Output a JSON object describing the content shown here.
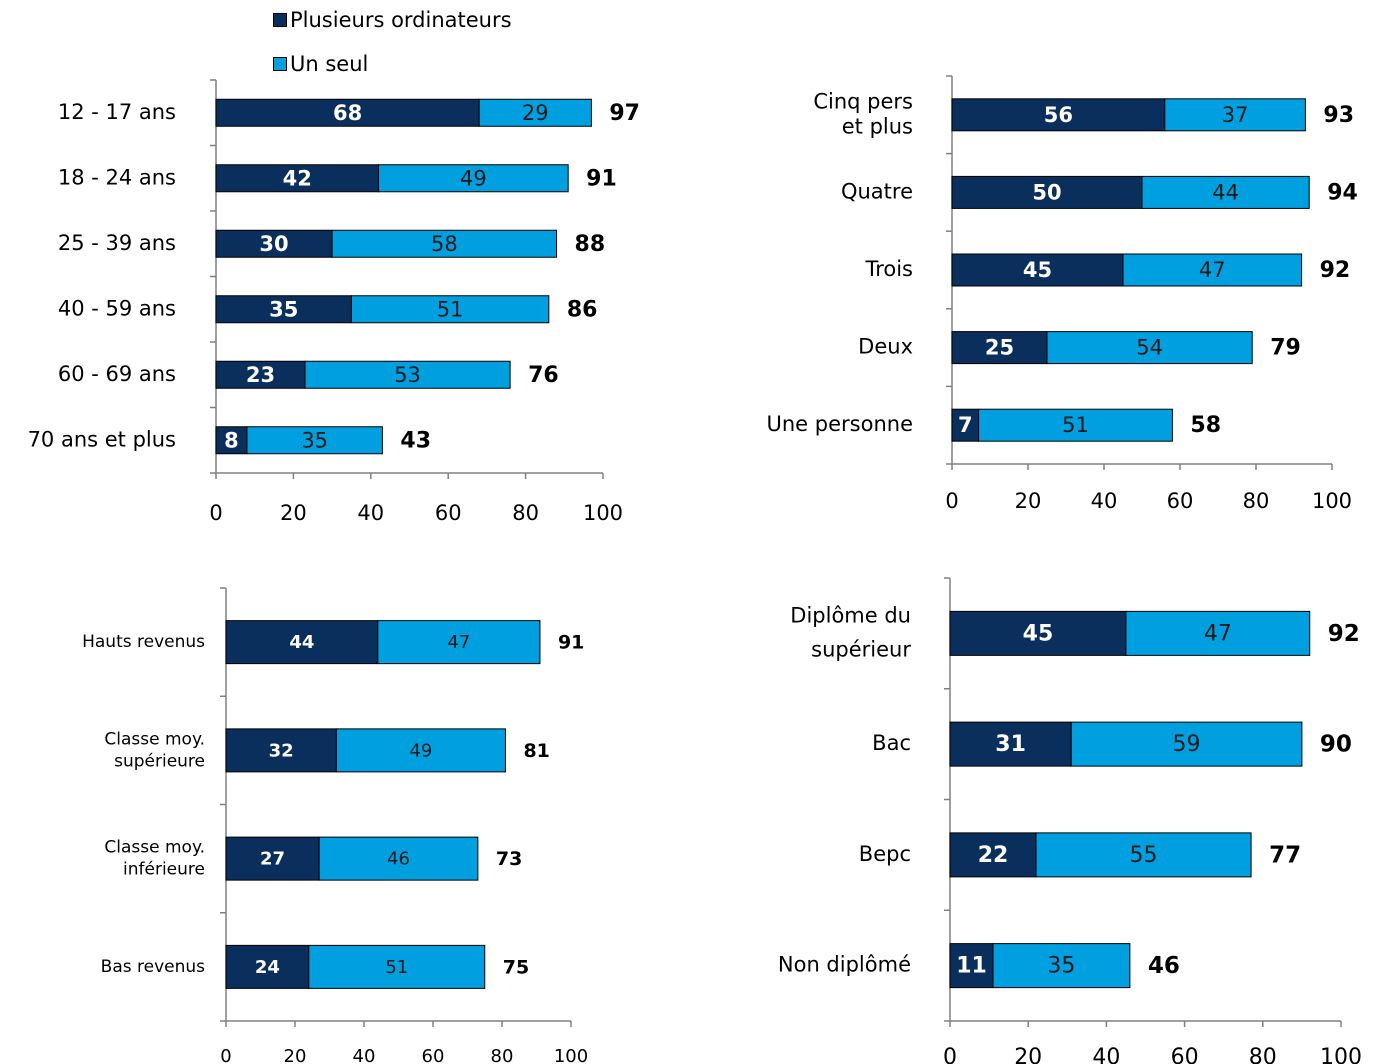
{
  "legend": {
    "series1_label": "Plusieurs ordinateurs",
    "series2_label": "Un seul"
  },
  "colors": {
    "series1": "#0b2f5c",
    "series2": "#00a0e0",
    "axis": "#808080"
  },
  "chart_data": [
    {
      "type": "bar",
      "orientation": "horizontal",
      "stacked": true,
      "categories": [
        "12 - 17 ans",
        "18 - 24 ans",
        "25 - 39 ans",
        "40 - 59 ans",
        "60 - 69 ans",
        "70 ans et plus"
      ],
      "series": [
        {
          "name": "Plusieurs ordinateurs",
          "values": [
            68,
            42,
            30,
            35,
            23,
            8
          ]
        },
        {
          "name": "Un seul",
          "values": [
            29,
            49,
            58,
            51,
            53,
            35
          ]
        }
      ],
      "totals": [
        97,
        91,
        88,
        86,
        76,
        43
      ],
      "xlim": [
        0,
        100
      ],
      "xticks": [
        0,
        20,
        40,
        60,
        80,
        100
      ]
    },
    {
      "type": "bar",
      "orientation": "horizontal",
      "stacked": true,
      "categories": [
        "Cinq pers\net plus",
        "Quatre",
        "Trois",
        "Deux",
        "Une personne"
      ],
      "series": [
        {
          "name": "Plusieurs ordinateurs",
          "values": [
            56,
            50,
            45,
            25,
            7
          ]
        },
        {
          "name": "Un seul",
          "values": [
            37,
            44,
            47,
            54,
            51
          ]
        }
      ],
      "totals": [
        93,
        94,
        92,
        79,
        58
      ],
      "xlim": [
        0,
        100
      ],
      "xticks": [
        0,
        20,
        40,
        60,
        80,
        100
      ]
    },
    {
      "type": "bar",
      "orientation": "horizontal",
      "stacked": true,
      "categories": [
        "Hauts revenus",
        "Classe moy.\nsupérieure",
        "Classe moy.\ninférieure",
        "Bas revenus"
      ],
      "series": [
        {
          "name": "Plusieurs ordinateurs",
          "values": [
            44,
            32,
            27,
            24
          ]
        },
        {
          "name": "Un seul",
          "values": [
            47,
            49,
            46,
            51
          ]
        }
      ],
      "totals": [
        91,
        81,
        73,
        75
      ],
      "xlim": [
        0,
        100
      ],
      "xticks": [
        0,
        20,
        40,
        60,
        80,
        100
      ]
    },
    {
      "type": "bar",
      "orientation": "horizontal",
      "stacked": true,
      "categories": [
        "Diplôme du\nsupérieur",
        "Bac",
        "Bepc",
        "Non diplômé"
      ],
      "series": [
        {
          "name": "Plusieurs ordinateurs",
          "values": [
            45,
            31,
            22,
            11
          ]
        },
        {
          "name": "Un seul",
          "values": [
            47,
            59,
            55,
            35
          ]
        }
      ],
      "totals": [
        92,
        90,
        77,
        46
      ],
      "xlim": [
        0,
        100
      ],
      "xticks": [
        0,
        20,
        40,
        60,
        80,
        100
      ]
    }
  ]
}
